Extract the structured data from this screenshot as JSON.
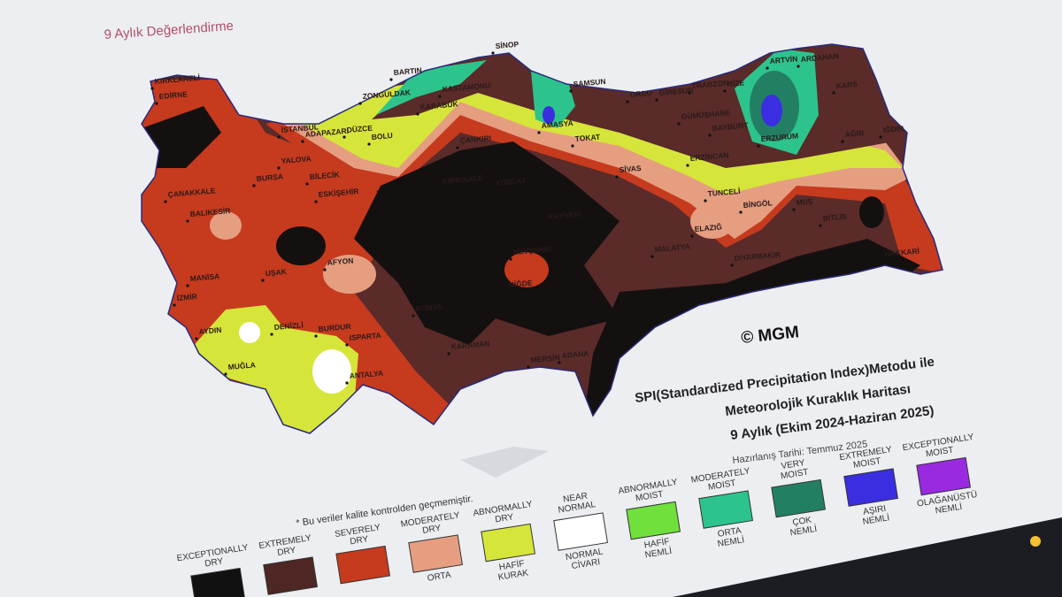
{
  "header": {
    "title": "9 Aylık Değerlendirme"
  },
  "map": {
    "cities": [
      "KIRKLARELİ",
      "EDİRNE",
      "İSTANBUL",
      "YALOVA",
      "BURSA",
      "BİLECİK",
      "ADAPAZARI",
      "DÜZCE",
      "BOLU",
      "ZONGULDAK",
      "BARTIN",
      "KARABÜK",
      "KASTAMONU",
      "SİNOP",
      "SAMSUN",
      "AMASYA",
      "TOKAT",
      "ORDU",
      "GİRESUN",
      "TRABZON",
      "RİZE",
      "ARTVİN",
      "ARDAHAN",
      "KARS",
      "GÜMÜŞHANE",
      "BAYBURT",
      "ERZURUM",
      "AĞRI",
      "IĞDIR",
      "ERZİNCAN",
      "SİVAS",
      "TUNCELİ",
      "BİNGÖL",
      "MUŞ",
      "BİTLİS",
      "ELAZIĞ",
      "MALATYA",
      "DİYARBAKIR",
      "HAKKARİ",
      "ÇANKIRI",
      "KIRIKKALE",
      "YOZGAT",
      "KAYSERİ",
      "NEVŞEHİR",
      "NİĞDE",
      "KONYA",
      "KARAMAN",
      "MERSİN",
      "ADANA",
      "ÇANAKKALE",
      "BALIKESİR",
      "ESKİŞEHİR",
      "UŞAK",
      "AFYON",
      "MANİSA",
      "İZMİR",
      "AYDIN",
      "DENİZLİ",
      "MUĞLA",
      "BURDUR",
      "ISPARTA",
      "ANTALYA"
    ],
    "copyright": "© MGM",
    "title_lines": [
      "SPI(Standardized Precipitation Index)Metodu ile",
      "Meteorolojik Kuraklık Haritası",
      "9 Aylık (Ekim 2024-Haziran 2025)"
    ],
    "prepared": "Hazırlanış Tarihi: Temmuz 2025",
    "note": "* Bu veriler kalite kontrolden geçmemiştir."
  },
  "legend": {
    "items": [
      {
        "english": "EXCEPTIONALLY DRY",
        "color": "#111111"
      },
      {
        "english": "EXTREMELY DRY",
        "color": "#4e2624"
      },
      {
        "english": "SEVERELY DRY",
        "color": "#c63a1e"
      },
      {
        "english": "MODERATELY DRY",
        "color": "#e59e80",
        "turkish": "ORTA"
      },
      {
        "english": "ABNORMALLY DRY",
        "color": "#d6e53a",
        "turkish": "HAFİF KURAK"
      },
      {
        "english": "NEAR NORMAL",
        "color": "#ffffff",
        "turkish": "NORMAL CİVARI"
      },
      {
        "english": "ABNORMALLY MOIST",
        "color": "#6fe03c",
        "turkish": "HAFİF NEMLİ"
      },
      {
        "english": "MODERATELY MOIST",
        "color": "#2cc48c",
        "turkish": "ORTA NEMLİ"
      },
      {
        "english": "VERY MOIST",
        "color": "#237f64",
        "turkish": "ÇOK NEMLİ"
      },
      {
        "english": "EXTREMELY MOIST",
        "color": "#3a2ee0",
        "turkish": "AŞIRI NEMLİ"
      },
      {
        "english": "EXCEPTIONALLY MOIST",
        "color": "#9a2ae0",
        "turkish": "OLAĞANÜSTÜ NEMLİ"
      }
    ]
  }
}
